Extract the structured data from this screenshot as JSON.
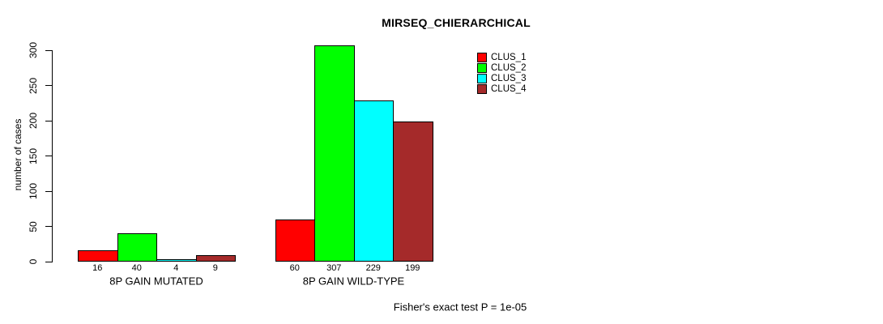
{
  "title": "MIRSEQ_CHIERARCHICAL",
  "ylabel": "number of cases",
  "footer": "Fisher's exact test P = 1e-05",
  "chart_data": {
    "type": "bar",
    "grouped": true,
    "categories": [
      "8P GAIN MUTATED",
      "8P GAIN WILD-TYPE"
    ],
    "series": [
      {
        "name": "CLUS_1",
        "color": "#ff0000",
        "values": [
          16,
          60
        ]
      },
      {
        "name": "CLUS_2",
        "color": "#00ff00",
        "values": [
          40,
          307
        ]
      },
      {
        "name": "CLUS_3",
        "color": "#00ffff",
        "values": [
          4,
          229
        ]
      },
      {
        "name": "CLUS_4",
        "color": "#a52a2a",
        "values": [
          9,
          199
        ]
      }
    ],
    "yticks": [
      0,
      50,
      100,
      150,
      200,
      250,
      300
    ],
    "ylim": [
      0,
      300
    ],
    "show_value_labels": true,
    "grid": false,
    "legend_position": "top-right",
    "axis_color": "#000000",
    "background_color": "#ffffff"
  }
}
